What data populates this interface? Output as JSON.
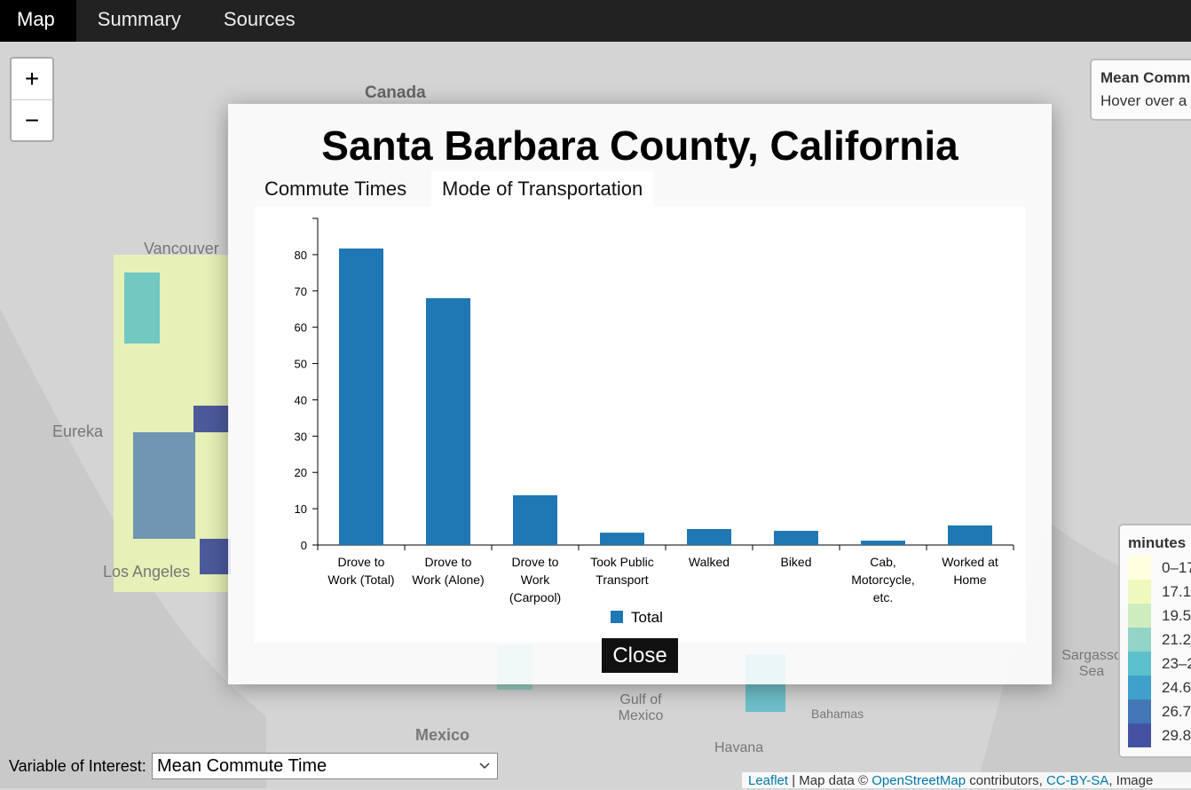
{
  "nav": [
    "Map",
    "Summary",
    "Sources"
  ],
  "zoom": [
    "+",
    "−"
  ],
  "map_labels": [
    "Canada",
    "Vancouver",
    "Eureka",
    "Los Angeles",
    "Gulf of Mexico",
    "Mexico",
    "Bahamas",
    "Havana",
    "Sargasso Sea"
  ],
  "info": {
    "title": "Mean Comm",
    "text": "Hover over a"
  },
  "modal": {
    "title": "Santa Barbara County, California",
    "tabs": [
      "Commute Times",
      "Mode of Transportation"
    ],
    "close": "Close"
  },
  "chart_data": {
    "type": "bar",
    "categories": [
      "Drove to Work (Total)",
      "Drove to Work (Alone)",
      "Drove to Work (Carpool)",
      "Took Public Transport",
      "Walked",
      "Biked",
      "Cab, Motorcycle, etc.",
      "Worked at Home"
    ],
    "series": [
      {
        "name": "Total",
        "color": "#1f77b4",
        "values": [
          81.7,
          68.0,
          13.7,
          3.4,
          4.4,
          3.9,
          1.2,
          5.4
        ]
      }
    ],
    "ylim": [
      0,
      90
    ],
    "yticks": [
      0,
      10,
      20,
      30,
      40,
      50,
      60,
      70,
      80
    ],
    "grid": false
  },
  "legend": {
    "title": "minutes",
    "items": [
      {
        "label": "0–17",
        "color": "#ffffd9"
      },
      {
        "label": "17.1",
        "color": "#edf8b1"
      },
      {
        "label": "19.5",
        "color": "#c7e9b4"
      },
      {
        "label": "21.2",
        "color": "#7fcdbb"
      },
      {
        "label": "23–2",
        "color": "#41b6c4"
      },
      {
        "label": "24.6",
        "color": "#1d91c0"
      },
      {
        "label": "26.7",
        "color": "#225ea8"
      },
      {
        "label": "29.8",
        "color": "#253494"
      }
    ]
  },
  "controls": {
    "label": "Variable of Interest:",
    "selected": "Mean Commute Time"
  },
  "attribution": [
    "Leaflet",
    " | Map data © ",
    "OpenStreetMap",
    " contributors, ",
    "CC-BY-SA",
    ", Image"
  ]
}
